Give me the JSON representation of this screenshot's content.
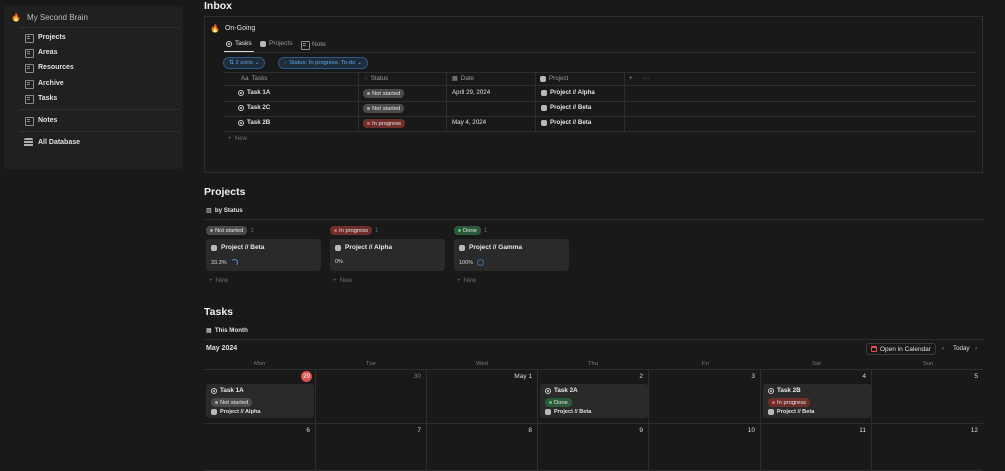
{
  "sidebar": {
    "title": "My Second Brain",
    "items": [
      "Projects",
      "Areas",
      "Resources",
      "Archive",
      "Tasks"
    ],
    "notes": "Notes",
    "all_database": "All Database"
  },
  "inbox": {
    "heading": "Inbox",
    "view_title": "On-Going",
    "tabs": [
      "Tasks",
      "Projects",
      "Note"
    ],
    "filters": {
      "sorts": "2 sorts",
      "status": "Status: In progress, To-do"
    },
    "columns": [
      "Tasks",
      "Status",
      "Date",
      "Project"
    ],
    "rows": [
      {
        "task": "Task 1A",
        "status": "Not started",
        "date": "April 29, 2024",
        "project": "Project // Alpha"
      },
      {
        "task": "Task 2C",
        "status": "Not started",
        "date": "",
        "project": "Project // Beta"
      },
      {
        "task": "Task 2B",
        "status": "In progress",
        "date": "May 4, 2024",
        "project": "Project // Beta"
      }
    ],
    "new_label": "New"
  },
  "projects": {
    "heading": "Projects",
    "view": "by Status",
    "groups": [
      {
        "status": "Not started",
        "count": "1",
        "card": "Project // Beta",
        "progress": "33.3%"
      },
      {
        "status": "In progress",
        "count": "1",
        "card": "Project // Alpha",
        "progress": "0%"
      },
      {
        "status": "Done",
        "count": "1",
        "card": "Project // Gamma",
        "progress": "100%"
      }
    ],
    "new_label": "New"
  },
  "tasks": {
    "heading": "Tasks",
    "view": "This Month",
    "month": "May 2024",
    "open_calendar": "Open in Calendar",
    "today": "Today",
    "weekdays": [
      "Mon",
      "Tue",
      "Wed",
      "Thu",
      "Fri",
      "Sat",
      "Sun"
    ],
    "week1": [
      "29",
      "30",
      "May 1",
      "2",
      "3",
      "4",
      "5"
    ],
    "week2": [
      "6",
      "7",
      "8",
      "9",
      "10",
      "11",
      "12"
    ],
    "events": [
      {
        "title": "Task 1A",
        "status": "Not started",
        "project": "Project // Alpha"
      },
      {
        "title": "Task 2A",
        "status": "Done",
        "project": "Project // Beta"
      },
      {
        "title": "Task 2B",
        "status": "In progress",
        "project": "Project // Beta"
      }
    ]
  },
  "colors": {
    "background": "#191919",
    "red_status": "#6e2e2b",
    "green_status": "#2b5a3a",
    "grey_status": "#4a4a4a",
    "accent_blue": "#5aa7ea"
  },
  "icons": [
    "fire-icon",
    "doc-icon",
    "database-icon",
    "task-icon",
    "project-icon",
    "calendar-icon",
    "board-icon",
    "table-icon"
  ]
}
